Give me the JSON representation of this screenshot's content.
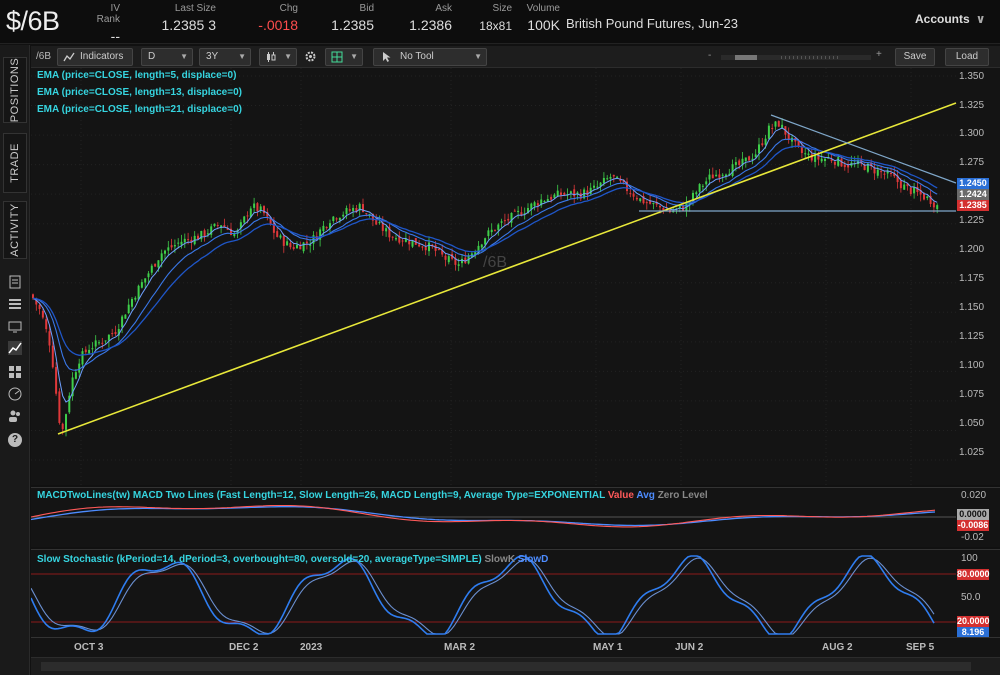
{
  "header": {
    "symbol": "$/6B",
    "quote_columns": [
      {
        "label": "IV Rank",
        "value": "--"
      },
      {
        "label": "Last Size",
        "value": "1.2385 3"
      },
      {
        "label": "Chg",
        "value": "-.0018"
      },
      {
        "label": "Bid",
        "value": "1.2385"
      },
      {
        "label": "Ask",
        "value": "1.2386"
      },
      {
        "label": "Size",
        "value": "18x81"
      },
      {
        "label": "Volume",
        "value": "100K"
      }
    ],
    "description": "British Pound Futures, Jun-23",
    "accounts_label": "Accounts"
  },
  "rail": {
    "tabs": [
      "POSITIONS",
      "TRADE",
      "ACTIVITY"
    ],
    "icons": [
      "document-icon",
      "list-icon",
      "monitor-icon",
      "chart-icon",
      "grid-icon",
      "gauge-icon",
      "people-icon",
      "help-icon"
    ],
    "help_glyph": "?"
  },
  "toolbar": {
    "symbol": "/6B",
    "indicators_label": "Indicators",
    "aggregation": "D",
    "timeframe": "3Y",
    "tool_label": "No Tool",
    "dash": "-",
    "plus": "+",
    "save_label": "Save",
    "load_label": "Load"
  },
  "price_pane": {
    "studies": [
      "EMA (price=CLOSE, length=5, displace=0)",
      "EMA (price=CLOSE, length=13, displace=0)",
      "EMA (price=CLOSE, length=21, displace=0)"
    ],
    "watermark": "/6B",
    "y_axis": [
      "1.350",
      "1.325",
      "1.300",
      "1.275",
      "1.250",
      "1.225",
      "1.200",
      "1.175",
      "1.150",
      "1.125",
      "1.100",
      "1.075",
      "1.050",
      "1.025"
    ],
    "price_tags": [
      {
        "value": "1.2450",
        "color": "#2a6fd6"
      },
      {
        "value": "1.2424",
        "color": "#6a6a6a"
      },
      {
        "value": "1.2385",
        "color": "#d43030"
      }
    ]
  },
  "macd_pane": {
    "title": "MACDTwoLines(tw) MACD Two Lines (Fast Length=12, Slow Length=26, MACD Length=9, Average Type=EXPONENTIAL",
    "legend": [
      "Value",
      "Avg",
      "Zero Level"
    ],
    "y_axis": [
      "0.020",
      "-0.02"
    ],
    "value_tags": [
      {
        "value": "0.0000",
        "color": "#aaaaaa"
      },
      {
        "value": "-0.0086",
        "color": "#d43030"
      }
    ]
  },
  "stoch_pane": {
    "title": "Slow Stochastic (kPeriod=14, dPeriod=3, overbought=80, oversold=20, averageType=SIMPLE)",
    "legend": [
      "SlowK",
      "SlowD"
    ],
    "y_axis": [
      "100",
      "50.0"
    ],
    "value_tags": [
      {
        "value": "80.0000",
        "color": "#d43030"
      },
      {
        "value": "20.0000",
        "color": "#d43030"
      },
      {
        "value": "8.196",
        "color": "#2a6fd6"
      }
    ]
  },
  "x_axis": [
    "OCT 3",
    "DEC 2",
    "2023",
    "MAR 2",
    "MAY 1",
    "JUN 2",
    "AUG 2",
    "SEP 5"
  ],
  "chart_data": {
    "type": "candlestick",
    "instrument": "/6B",
    "price_axis_range": [
      1.025,
      1.35
    ],
    "annotations": [
      "rising trendline from Sep 2022 low",
      "descending trendline from July 2023 high",
      "horizontal support near 1.23"
    ]
  }
}
